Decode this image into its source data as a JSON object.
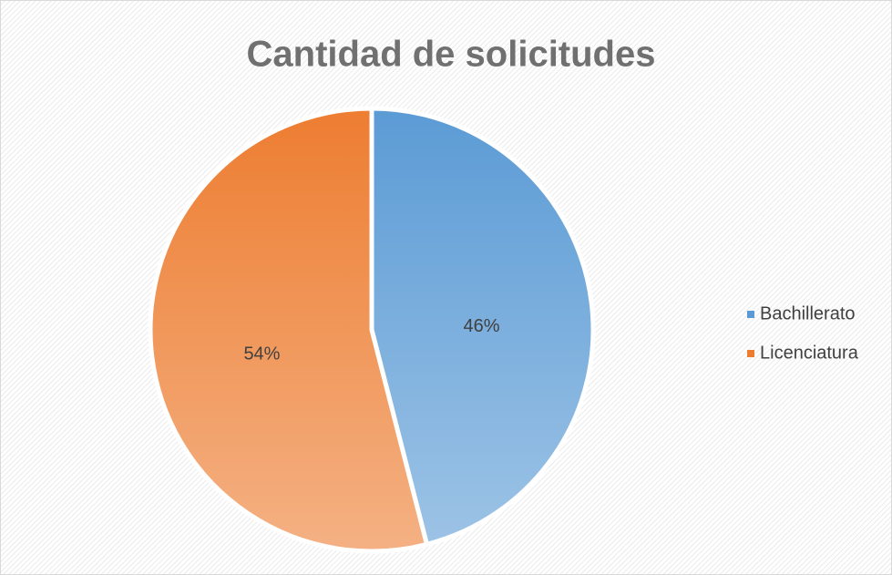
{
  "chart_data": {
    "type": "pie",
    "title": "Cantidad de solicitudes",
    "categories": [
      "Bachillerato",
      "Licenciatura"
    ],
    "values": [
      46,
      54
    ],
    "value_labels": [
      "46%",
      "54%"
    ],
    "colors": [
      "#5b9bd5",
      "#ed7d31"
    ],
    "legend": "right"
  }
}
